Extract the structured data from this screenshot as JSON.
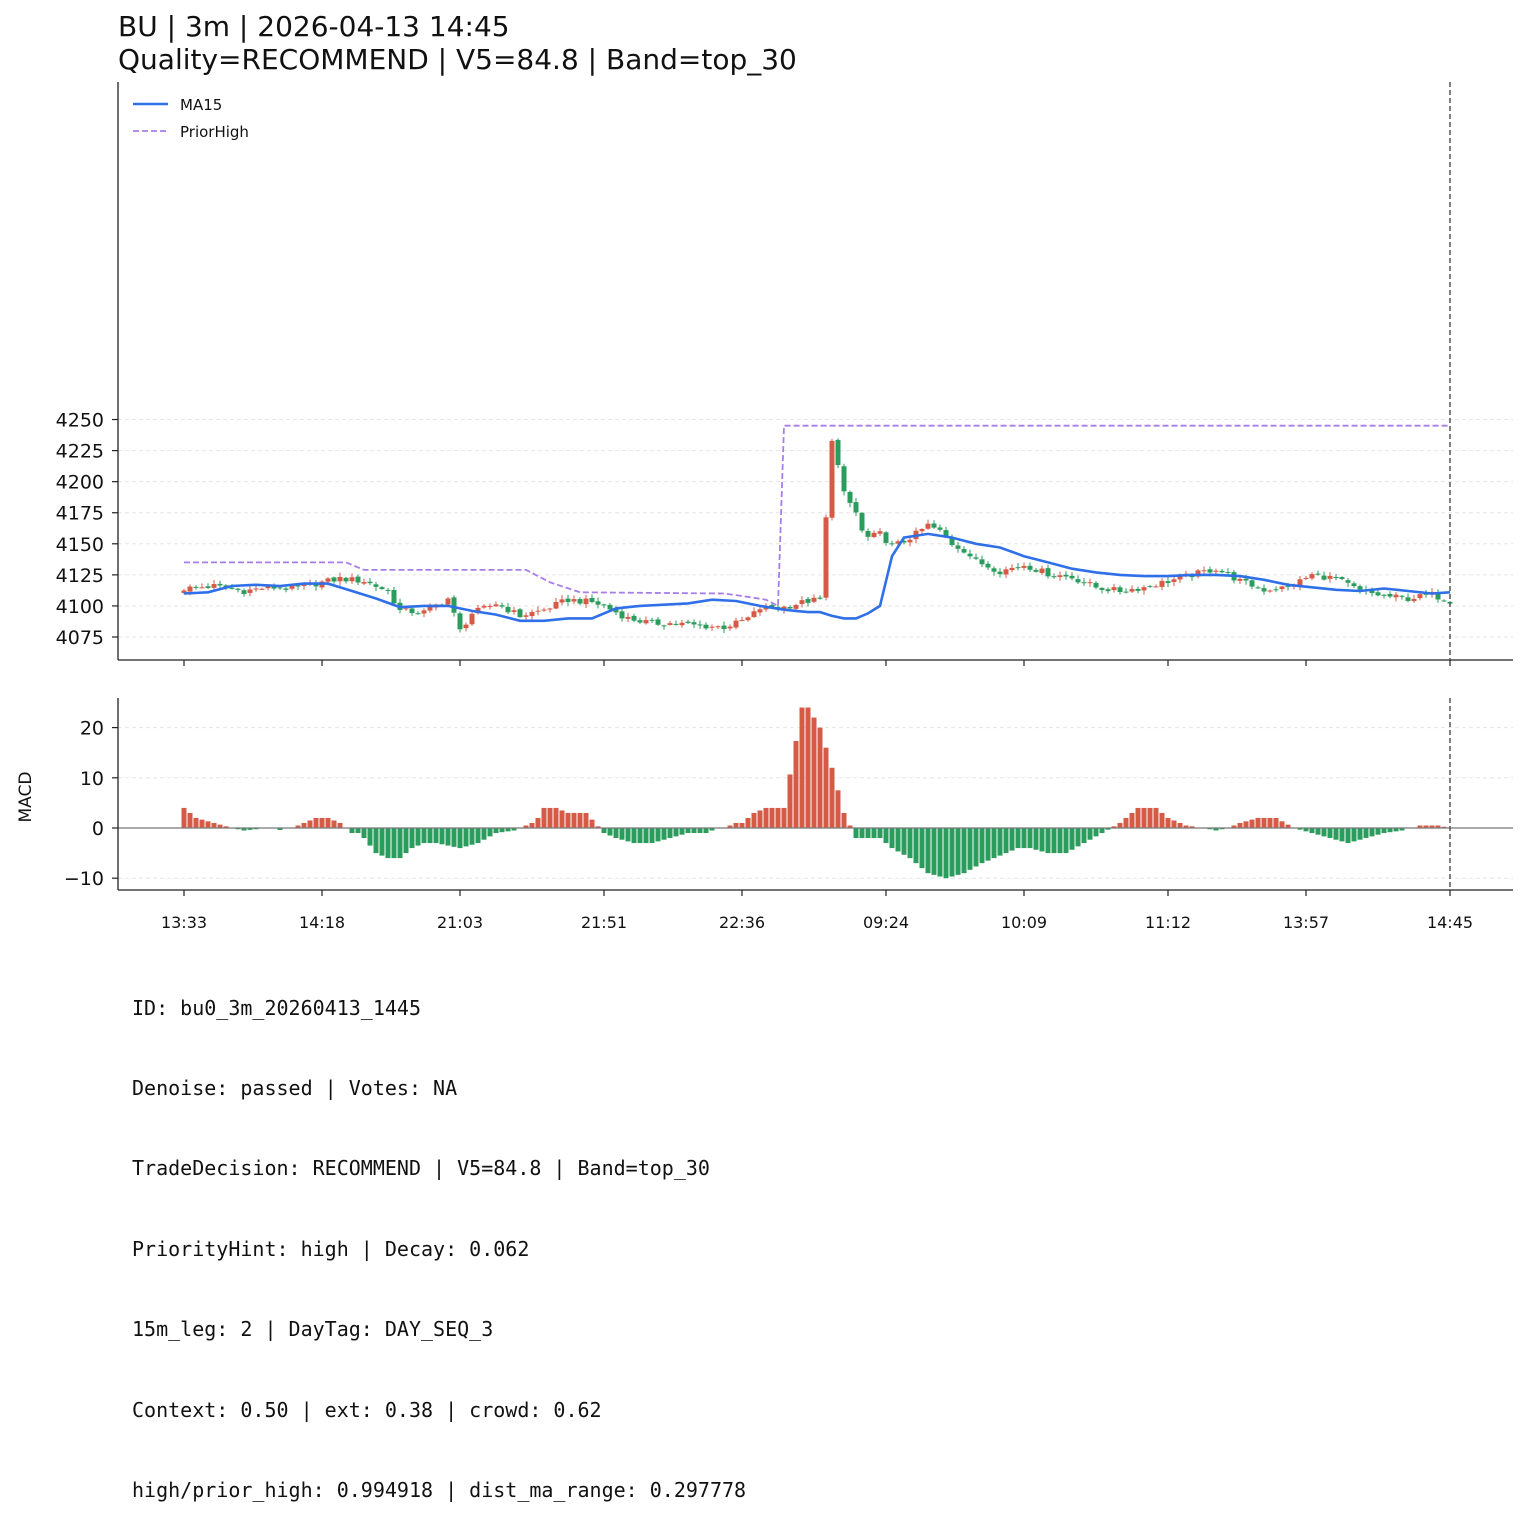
{
  "title_line1": "BU | 3m | 2026-04-13 14:45",
  "title_line2": "Quality=RECOMMEND | V5=84.8 | Band=top_30",
  "info_lines": [
    "ID: bu0_3m_20260413_1445",
    "Denoise: passed | Votes: NA",
    "TradeDecision: RECOMMEND | V5=84.8 | Band=top_30",
    "PriorityHint: high | Decay: 0.062",
    "15m_leg: 2 | DayTag: DAY_SEQ_3",
    "Context: 0.50 | ext: 0.38 | crowd: 0.62",
    "high/prior_high: 0.994918 | dist_ma_range: 0.297778"
  ],
  "colors": {
    "up": "#d65b47",
    "down": "#2a9d5c",
    "ma": "#2f6fe8",
    "prior_high": "#a77ee8",
    "grid": "#e6e6e6"
  },
  "chart_data": [
    {
      "type": "candlestick",
      "title": "",
      "ylabel": "",
      "ylim": [
        4071,
        4253
      ],
      "yticks": [
        4075,
        4100,
        4125,
        4150,
        4175,
        4200,
        4225,
        4250
      ],
      "x_tick_labels": [
        "13:33",
        "14:18",
        "21:03",
        "21:51",
        "22:36",
        "09:24",
        "10:09",
        "11:12",
        "13:57",
        "14:45"
      ],
      "x_tick_index": [
        0,
        23,
        46,
        70,
        93,
        117,
        140,
        164,
        187,
        211
      ],
      "legend": {
        "position": "top-left",
        "entries": [
          "MA15",
          "PriorHigh"
        ]
      },
      "grid": "horizontal",
      "marker_line_index": 211,
      "candle_anchors": {
        "index": [
          0,
          5,
          10,
          14,
          18,
          22,
          26,
          30,
          34,
          36,
          40,
          44,
          46,
          48,
          52,
          56,
          60,
          64,
          68,
          70,
          74,
          78,
          82,
          86,
          90,
          92,
          94,
          96,
          100,
          104,
          106,
          108,
          110,
          112,
          113,
          114,
          116,
          118,
          120,
          122,
          124,
          126,
          128,
          130,
          132,
          136,
          140,
          144,
          148,
          152,
          156,
          160,
          164,
          168,
          172,
          176,
          180,
          184,
          188,
          192,
          196,
          200,
          204,
          208,
          211
        ],
        "close": [
          4114,
          4116,
          4112,
          4115,
          4114,
          4118,
          4122,
          4120,
          4112,
          4096,
          4095,
          4106,
          4080,
          4094,
          4102,
          4092,
          4097,
          4105,
          4103,
          4100,
          4090,
          4086,
          4086,
          4084,
          4083,
          4086,
          4090,
          4098,
          4099,
          4104,
          4105,
          4235,
          4190,
          4175,
          4160,
          4155,
          4158,
          4148,
          4152,
          4158,
          4165,
          4160,
          4150,
          4145,
          4136,
          4128,
          4133,
          4126,
          4123,
          4115,
          4112,
          4115,
          4120,
          4125,
          4130,
          4120,
          4113,
          4115,
          4125,
          4122,
          4112,
          4108,
          4106,
          4109,
          4104
        ]
      },
      "series": [
        {
          "name": "MA15",
          "index": [
            0,
            4,
            8,
            12,
            16,
            20,
            24,
            28,
            32,
            36,
            40,
            44,
            48,
            52,
            56,
            60,
            64,
            68,
            72,
            76,
            80,
            84,
            88,
            92,
            96,
            100,
            102,
            104,
            106,
            108,
            110,
            112,
            114,
            116,
            118,
            120,
            124,
            128,
            132,
            136,
            140,
            144,
            148,
            152,
            156,
            160,
            164,
            168,
            172,
            176,
            180,
            184,
            188,
            192,
            196,
            200,
            204,
            208,
            211
          ],
          "values": [
            4110,
            4111,
            4116,
            4117,
            4116,
            4118,
            4118,
            4112,
            4106,
            4099,
            4100,
            4100,
            4096,
            4093,
            4088,
            4088,
            4090,
            4090,
            4098,
            4100,
            4101,
            4102,
            4105,
            4104,
            4100,
            4097,
            4096,
            4095,
            4095,
            4092,
            4090,
            4090,
            4094,
            4100,
            4140,
            4155,
            4158,
            4155,
            4150,
            4147,
            4140,
            4135,
            4130,
            4127,
            4125,
            4124,
            4124,
            4125,
            4125,
            4124,
            4121,
            4117,
            4115,
            4113,
            4112,
            4114,
            4112,
            4110,
            4111
          ]
        },
        {
          "name": "PriorHigh",
          "index": [
            0,
            27,
            30,
            57,
            61,
            66,
            90,
            93,
            97,
            99,
            100,
            102,
            104,
            106,
            108,
            110,
            112,
            114,
            116,
            118,
            120,
            122,
            124,
            126,
            128,
            130,
            132,
            134,
            136,
            138,
            140,
            142,
            144,
            146,
            148,
            150,
            152,
            154,
            156,
            158,
            160,
            162,
            164,
            166,
            168,
            170,
            172,
            174,
            176,
            178,
            180,
            182,
            184,
            186,
            188,
            190,
            192,
            194,
            196,
            198,
            200,
            202,
            204,
            206,
            208,
            210,
            211
          ],
          "values": [
            4135,
            4135,
            4129,
            4129,
            4119,
            4111,
            4110,
            4108,
            4105,
            4100,
            4245,
            4245,
            4245,
            4245,
            4245,
            4245,
            4245,
            4245,
            4245,
            4245,
            4245,
            4245,
            4245,
            4245,
            4245,
            4245,
            4245,
            4245,
            4245,
            4245,
            4245,
            4245,
            4245,
            4245,
            4245,
            4245,
            4245,
            4245,
            4245,
            4245,
            4245,
            4245,
            4245,
            4245,
            4245,
            4245,
            4245,
            4245,
            4245,
            4245,
            4245,
            4245,
            4245,
            4245,
            4245,
            4245,
            4245,
            4245,
            4245,
            4245,
            4245,
            4245,
            4245,
            4245,
            4245,
            4245,
            4245
          ]
        }
      ]
    },
    {
      "type": "bar",
      "title": "",
      "ylabel": "MACD",
      "ylim": [
        -12.5,
        26
      ],
      "yticks": [
        -10,
        0,
        10,
        20
      ],
      "grid": "horizontal",
      "zero_line": true,
      "marker_line_index": 211,
      "anchors": {
        "index": [
          0,
          2,
          5,
          8,
          10,
          14,
          16,
          18,
          20,
          22,
          24,
          26,
          28,
          29,
          30,
          32,
          34,
          36,
          38,
          40,
          42,
          46,
          49,
          52,
          55,
          58,
          59,
          60,
          62,
          64,
          67,
          70,
          72,
          75,
          78,
          81,
          84,
          87,
          89,
          90,
          92,
          93,
          95,
          97,
          100,
          103,
          104,
          105,
          106,
          107,
          108,
          110,
          112,
          114,
          116,
          118,
          121,
          124,
          127,
          130,
          133,
          135,
          137,
          139,
          141,
          144,
          147,
          150,
          153,
          156,
          159,
          162,
          164,
          167,
          170,
          172,
          174,
          176,
          179,
          182,
          185,
          188,
          191,
          194,
          197,
          200,
          203,
          206,
          209,
          211
        ],
        "values": [
          4,
          2,
          1,
          0,
          -0.5,
          0,
          -0.4,
          0,
          1,
          2,
          2,
          1,
          -1,
          -1,
          -2,
          -5,
          -6,
          -6,
          -4,
          -3,
          -3,
          -4,
          -3,
          -1,
          -0.5,
          1,
          2,
          4,
          4,
          3,
          3,
          -1,
          -2,
          -3,
          -3,
          -2,
          -1,
          -1,
          0,
          0,
          1,
          1,
          3,
          4,
          4,
          24,
          24,
          22,
          20,
          16,
          12,
          3,
          -2,
          -2,
          -2,
          -4,
          -6,
          -9,
          -10,
          -9,
          -7,
          -6,
          -5,
          -4,
          -4,
          -5,
          -5,
          -3,
          -1,
          1,
          4,
          4,
          2,
          0.5,
          0,
          -0.5,
          0,
          1,
          2,
          2,
          0,
          -1,
          -2,
          -3,
          -2,
          -1,
          -0.5,
          0.5,
          0.5,
          0
        ]
      }
    }
  ]
}
